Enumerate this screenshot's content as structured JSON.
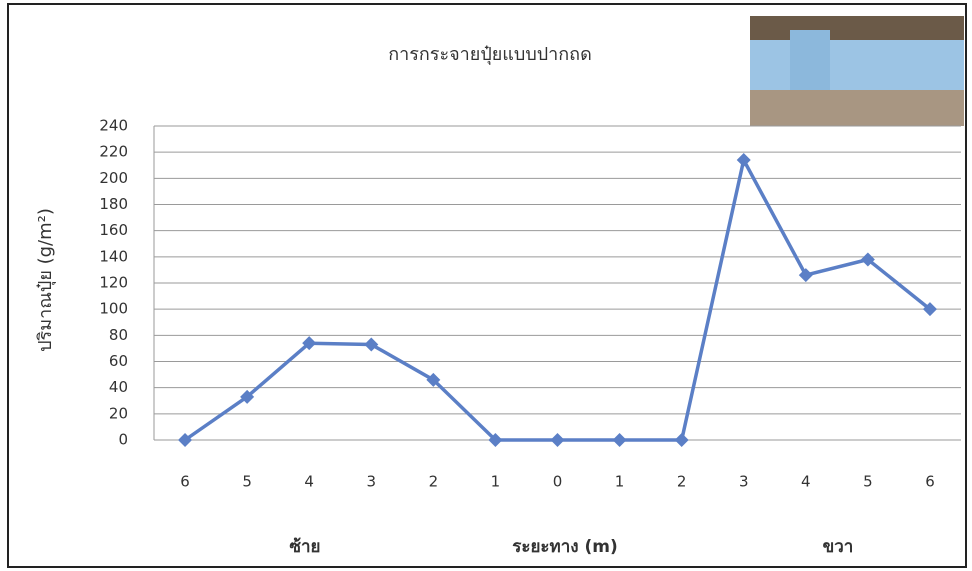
{
  "chart_data": {
    "type": "line",
    "title": "การกระจายปุ๋ยแบบปากถด",
    "y_label": "ปริมาณปุ๋ย (g/m²)",
    "x_label": "ระยะทาง (m)",
    "annotations": [
      "ซ้าย",
      "ขวา"
    ],
    "categories": [
      "6",
      "5",
      "4",
      "3",
      "2",
      "1",
      "0",
      "1",
      "2",
      "3",
      "4",
      "5",
      "6"
    ],
    "series": [
      {
        "color": "#5b7fc6",
        "values": [
          0,
          33,
          74,
          73,
          46,
          0,
          0,
          0,
          0,
          214,
          126,
          138,
          100
        ]
      }
    ],
    "ylim": [
      0,
      240
    ],
    "yticks": [
      0,
      20,
      40,
      60,
      80,
      100,
      120,
      140,
      160,
      180,
      200,
      220,
      240
    ],
    "grid": true
  }
}
